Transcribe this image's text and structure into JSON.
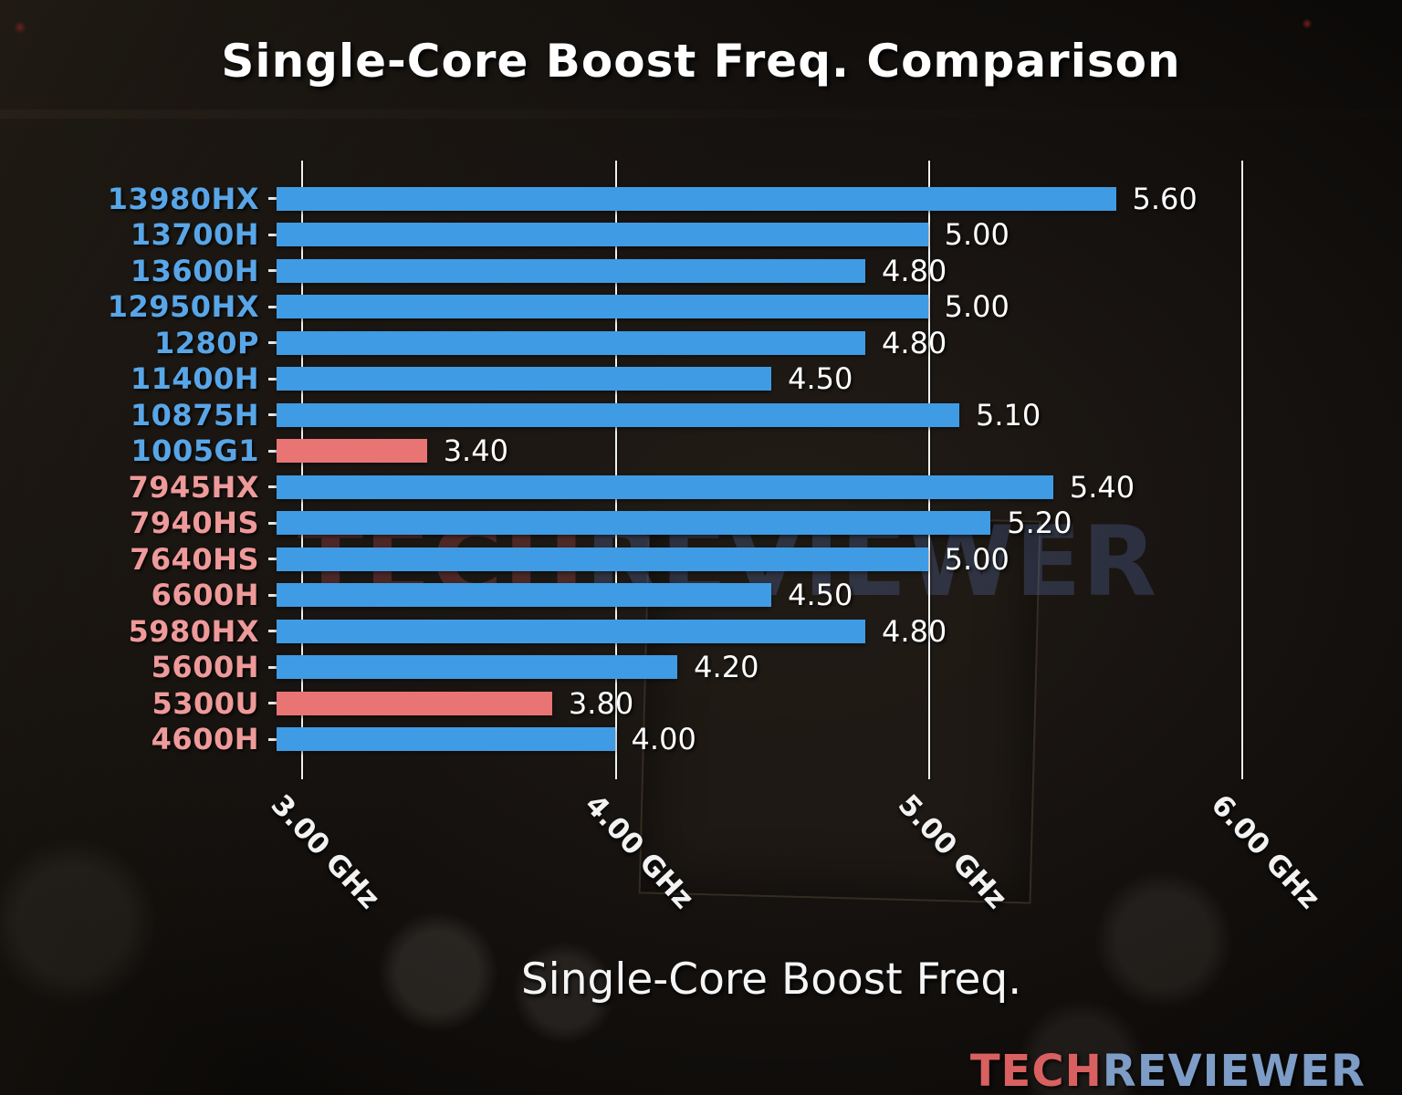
{
  "title": "Single-Core Boost Freq. Comparison",
  "x_axis_title": "Single-Core Boost Freq.",
  "watermark": {
    "tech": "TECH",
    "reviewer": "REVIEWER"
  },
  "logo": {
    "tech": "TECH",
    "reviewer": "REVIEWER"
  },
  "colors": {
    "bar_blue": "#3f9be4",
    "bar_red": "#e87474",
    "label_blue": "#58a6e8",
    "label_red": "#ef9a9a",
    "value_text": "#ffffff",
    "gridline": "#f0f0f0",
    "title_text": "#ffffff",
    "logo_tech": "#d96060",
    "logo_reviewer": "#7d9cc6"
  },
  "chart_data": {
    "type": "bar",
    "orientation": "horizontal",
    "title": "Single-Core Boost Freq. Comparison",
    "xlabel": "Single-Core Boost Freq.",
    "unit": "GHz",
    "grid": true,
    "legend": false,
    "xlim": [
      2.92,
      6.4
    ],
    "xticks": [
      {
        "value": 3.0,
        "label": "3.00 GHz"
      },
      {
        "value": 4.0,
        "label": "4.00 GHz"
      },
      {
        "value": 5.0,
        "label": "5.00 GHz"
      },
      {
        "value": 6.0,
        "label": "6.00 GHz"
      }
    ],
    "bars": [
      {
        "category": "13980HX",
        "value": 5.6,
        "label": "5.60",
        "bar_color": "blue",
        "label_color": "blue"
      },
      {
        "category": "13700H",
        "value": 5.0,
        "label": "5.00",
        "bar_color": "blue",
        "label_color": "blue"
      },
      {
        "category": "13600H",
        "value": 4.8,
        "label": "4.80",
        "bar_color": "blue",
        "label_color": "blue"
      },
      {
        "category": "12950HX",
        "value": 5.0,
        "label": "5.00",
        "bar_color": "blue",
        "label_color": "blue"
      },
      {
        "category": "1280P",
        "value": 4.8,
        "label": "4.80",
        "bar_color": "blue",
        "label_color": "blue"
      },
      {
        "category": "11400H",
        "value": 4.5,
        "label": "4.50",
        "bar_color": "blue",
        "label_color": "blue"
      },
      {
        "category": "10875H",
        "value": 5.1,
        "label": "5.10",
        "bar_color": "blue",
        "label_color": "blue"
      },
      {
        "category": "1005G1",
        "value": 3.4,
        "label": "3.40",
        "bar_color": "red",
        "label_color": "blue"
      },
      {
        "category": "7945HX",
        "value": 5.4,
        "label": "5.40",
        "bar_color": "blue",
        "label_color": "red"
      },
      {
        "category": "7940HS",
        "value": 5.2,
        "label": "5.20",
        "bar_color": "blue",
        "label_color": "red"
      },
      {
        "category": "7640HS",
        "value": 5.0,
        "label": "5.00",
        "bar_color": "blue",
        "label_color": "red"
      },
      {
        "category": "6600H",
        "value": 4.5,
        "label": "4.50",
        "bar_color": "blue",
        "label_color": "red"
      },
      {
        "category": "5980HX",
        "value": 4.8,
        "label": "4.80",
        "bar_color": "blue",
        "label_color": "red"
      },
      {
        "category": "5600H",
        "value": 4.2,
        "label": "4.20",
        "bar_color": "blue",
        "label_color": "red"
      },
      {
        "category": "5300U",
        "value": 3.8,
        "label": "3.80",
        "bar_color": "red",
        "label_color": "red"
      },
      {
        "category": "4600H",
        "value": 4.0,
        "label": "4.00",
        "bar_color": "blue",
        "label_color": "red"
      }
    ]
  }
}
